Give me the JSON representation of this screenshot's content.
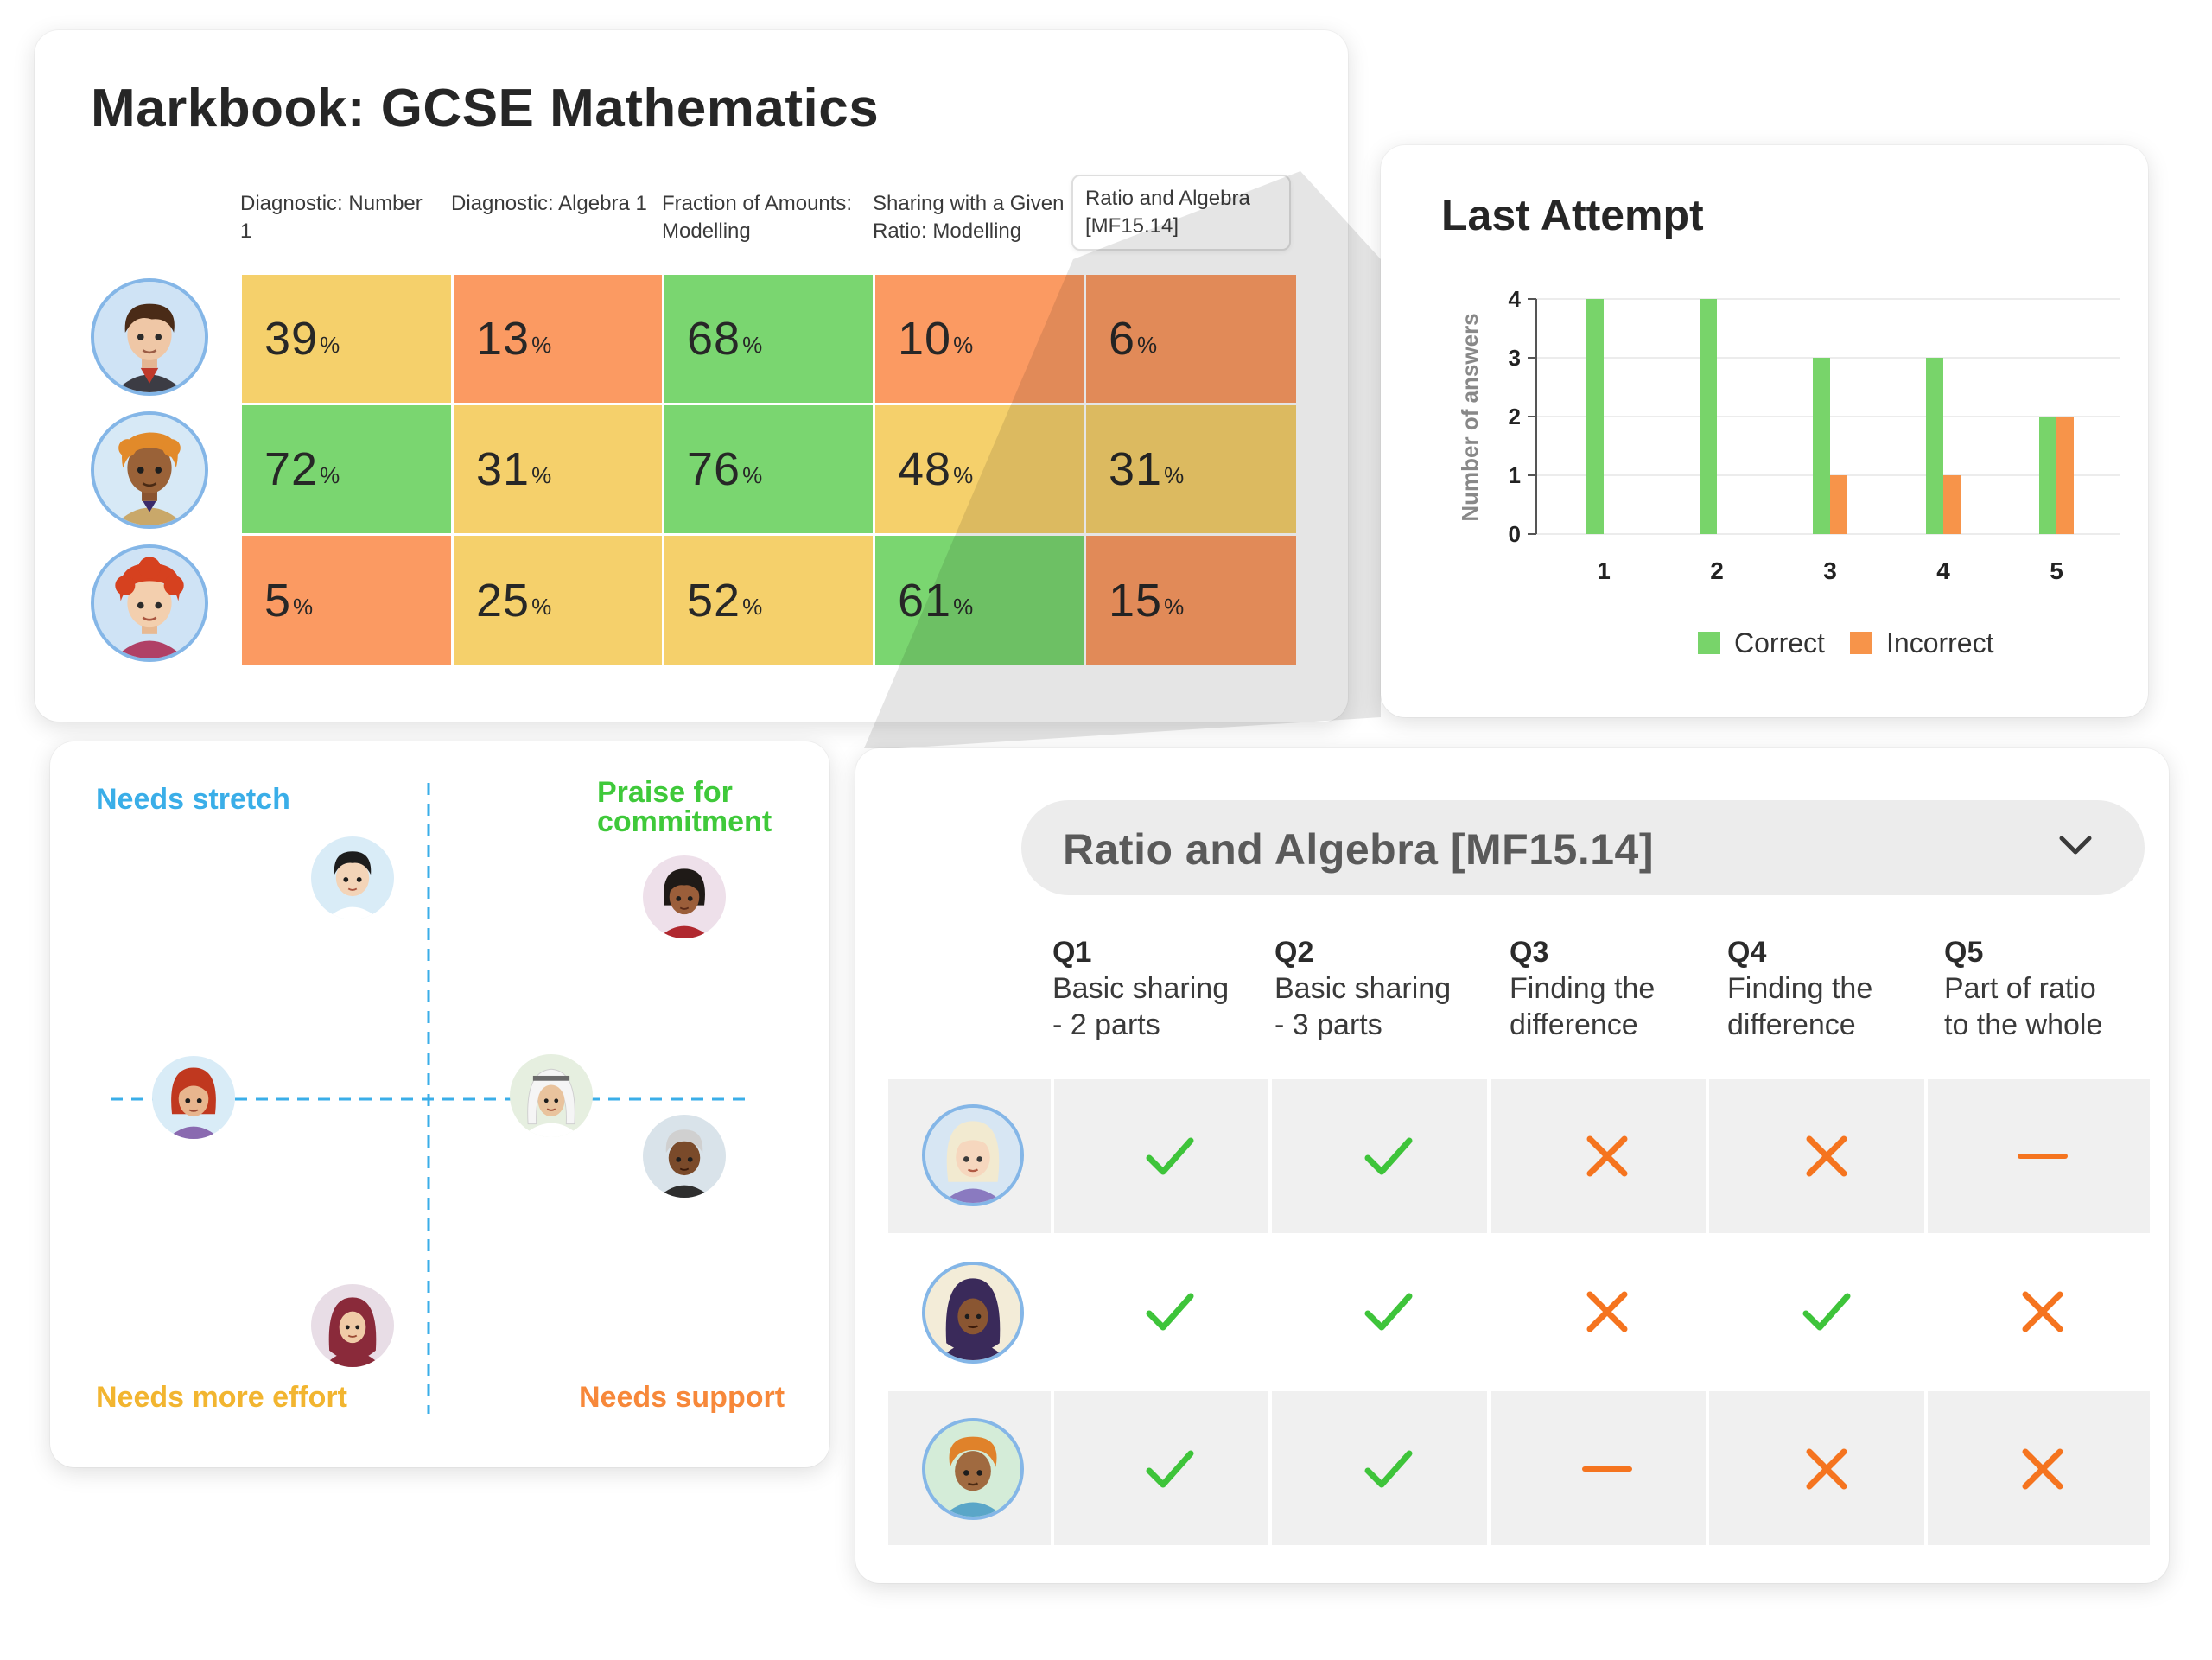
{
  "markbook": {
    "title": "Markbook: GCSE Mathematics",
    "columns": [
      "Diagnostic: Number 1",
      "Diagnostic: Algebra 1",
      "Fraction of Amounts: Modelling",
      "Sharing with a Given Ratio: Modelling",
      "Ratio and Algebra [MF15.14]"
    ],
    "rows": [
      {
        "student": "student-1",
        "scores": [
          "39",
          "13",
          "68",
          "10",
          "6"
        ]
      },
      {
        "student": "student-2",
        "scores": [
          "72",
          "31",
          "76",
          "48",
          "31"
        ]
      },
      {
        "student": "student-3",
        "scores": [
          "5",
          "25",
          "52",
          "61",
          "15"
        ]
      }
    ],
    "percent_symbol": "%",
    "colors": {
      "green": "#7ad670",
      "yellow": "#f5d06b",
      "orange": "#fb9a62"
    }
  },
  "last_attempt": {
    "title": "Last Attempt",
    "chart_data": {
      "type": "bar",
      "categories": [
        "1",
        "2",
        "3",
        "4",
        "5"
      ],
      "series": [
        {
          "name": "Correct",
          "values": [
            4,
            4,
            3,
            3,
            2
          ],
          "color": "#78d46a"
        },
        {
          "name": "Incorrect",
          "values": [
            0,
            0,
            1,
            1,
            2
          ],
          "color": "#f7944a"
        }
      ],
      "xlabel": "",
      "ylabel": "Number of answers",
      "ylim": [
        0,
        4
      ],
      "yticks": [
        "0",
        "1",
        "2",
        "3",
        "4"
      ],
      "grid": true,
      "legend": "bottom"
    }
  },
  "quadrant": {
    "top_left": "Needs stretch",
    "top_right_line1": "Praise for",
    "top_right_line2": "commitment",
    "bottom_left": "Needs more effort",
    "bottom_right": "Needs support",
    "colors": {
      "stretch": "#3aaee8",
      "praise": "#3fc93a",
      "effort": "#f2b530",
      "support": "#f7883a"
    }
  },
  "assessment": {
    "selected": "Ratio and Algebra [MF15.14]",
    "questions": [
      {
        "q": "Q1",
        "line1": "Basic sharing",
        "line2": "- 2 parts"
      },
      {
        "q": "Q2",
        "line1": "Basic sharing",
        "line2": "- 3 parts"
      },
      {
        "q": "Q3",
        "line1": "Finding the",
        "line2": "difference"
      },
      {
        "q": "Q4",
        "line1": "Finding the",
        "line2": "difference"
      },
      {
        "q": "Q5",
        "line1": "Part of ratio",
        "line2": "to the whole"
      }
    ],
    "results": [
      [
        "check",
        "check",
        "cross",
        "cross",
        "dash"
      ],
      [
        "check",
        "check",
        "cross",
        "check",
        "cross"
      ],
      [
        "check",
        "check",
        "dash",
        "cross",
        "cross"
      ]
    ],
    "mark_icons": {
      "check": "check-icon",
      "cross": "cross-icon",
      "dash": "not-attempted-icon"
    }
  }
}
